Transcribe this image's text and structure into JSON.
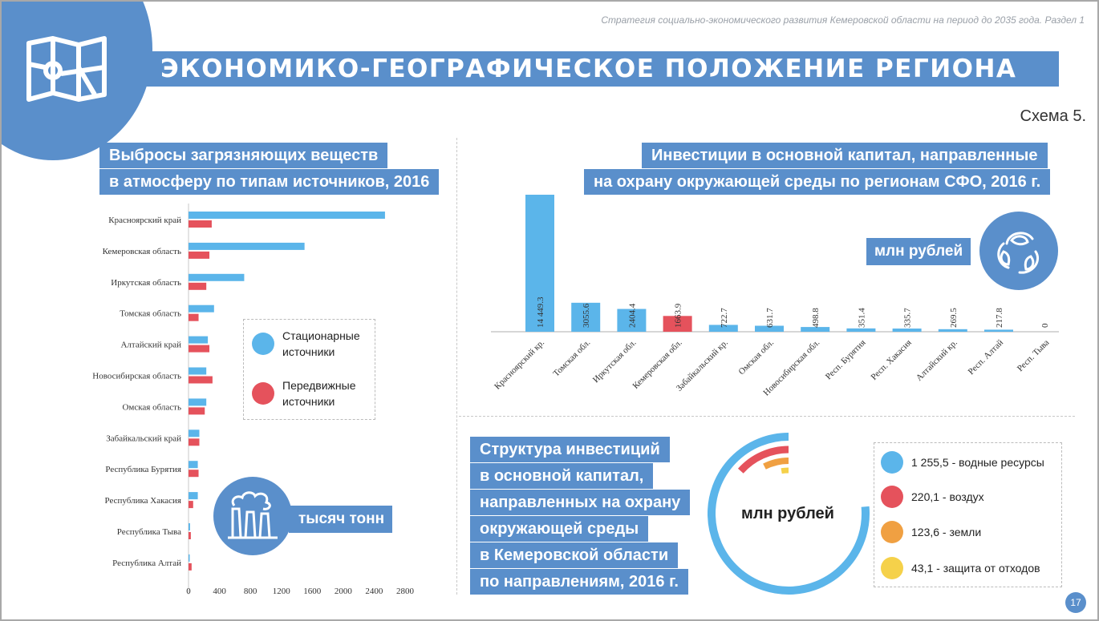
{
  "header": {
    "subtitle": "Стратегия социально-экономического развития Кемеровской области на период до 2035 года. Раздел 1",
    "title": "ЭКОНОМИКО-ГЕОГРАФИЧЕСКОЕ ПОЛОЖЕНИЕ РЕГИОНА",
    "scheme": "Схема 5.",
    "icon": "map-icon"
  },
  "left_panel": {
    "title_line1": "Выбросы загрязняющих веществ",
    "title_line2": "в атмосферу по типам источников, 2016",
    "unit": "тысяч тонн",
    "unit_icon": "factory-icon",
    "legend": [
      {
        "label_line1": "Стационарные",
        "label_line2": "источники",
        "color": "#5bb5ea"
      },
      {
        "label_line1": "Передвижные",
        "label_line2": "источники",
        "color": "#e5525c"
      }
    ]
  },
  "right_top_panel": {
    "title_line1": "Инвестиции в основной капитал, направленные",
    "title_line2": "на охрану окружающей среды по регионам СФО, 2016 г.",
    "unit": "млн рублей",
    "unit_icon": "recycle-leaves-icon"
  },
  "right_bottom_panel": {
    "title_lines": [
      "Структура инвестиций",
      "в основной капитал,",
      "направленных на охрану",
      "окружающей среды",
      "в Кемеровской области",
      "по направлениям, 2016 г."
    ],
    "unit": "млн рублей",
    "legend": [
      {
        "label": "1 255,5 - водные ресурсы",
        "color": "#5bb5ea"
      },
      {
        "label": "220,1 - воздух",
        "color": "#e5525c"
      },
      {
        "label": "123,6 - земли",
        "color": "#f0a042"
      },
      {
        "label": "43,1 - защита от отходов",
        "color": "#f5d14a"
      }
    ]
  },
  "page_number": "17",
  "chart_data": [
    {
      "type": "bar",
      "orientation": "horizontal",
      "categories": [
        "Красноярский край",
        "Кемеровская область",
        "Иркутская область",
        "Томская область",
        "Алтайский край",
        "Новосибирская область",
        "Омская область",
        "Забайкальский край",
        "Республика Бурятия",
        "Республика Хакасия",
        "Республика Тыва",
        "Республика Алтай"
      ],
      "series": [
        {
          "name": "Стационарные источники",
          "color": "#5bb5ea",
          "values": [
            2540,
            1500,
            720,
            330,
            250,
            230,
            230,
            140,
            120,
            120,
            20,
            15
          ]
        },
        {
          "name": "Передвижные источники",
          "color": "#e5525c",
          "values": [
            300,
            270,
            230,
            130,
            270,
            310,
            210,
            140,
            130,
            60,
            30,
            40
          ]
        }
      ],
      "xticks": [
        0,
        400,
        800,
        1200,
        1600,
        2000,
        2400,
        2800
      ],
      "xlim": [
        0,
        2800
      ]
    },
    {
      "type": "bar",
      "categories": [
        "Красноярский кр.",
        "Томская обл.",
        "Иркутская обл.",
        "Кемеровская обл.",
        "Забайкальский кр.",
        "Омская обл.",
        "Новосибирская обл.",
        "Респ. Бурятия",
        "Респ. Хакасия",
        "Алтайский кр.",
        "Респ. Алтай",
        "Респ. Тыва"
      ],
      "values": [
        14449.3,
        3055.6,
        2404.4,
        1663.9,
        722.7,
        631.7,
        498.8,
        351.4,
        335.7,
        269.5,
        217.8,
        0
      ],
      "value_labels": [
        "14 449.3",
        "3055.6",
        "2404.4",
        "1663.9",
        "722.7",
        "631.7",
        "498.8",
        "351.4",
        "335.7",
        "269.5",
        "217.8",
        "0"
      ],
      "highlight_color": "#e5525c",
      "color": "#5bb5ea",
      "highlight_index": 3
    },
    {
      "type": "pie",
      "style": "concentric-rings",
      "series": [
        {
          "name": "водные ресурсы",
          "value": 1255.5,
          "color": "#5bb5ea"
        },
        {
          "name": "воздух",
          "value": 220.1,
          "color": "#e5525c"
        },
        {
          "name": "земли",
          "value": 123.6,
          "color": "#f0a042"
        },
        {
          "name": "защита от отходов",
          "value": 43.1,
          "color": "#f5d14a"
        }
      ]
    }
  ]
}
